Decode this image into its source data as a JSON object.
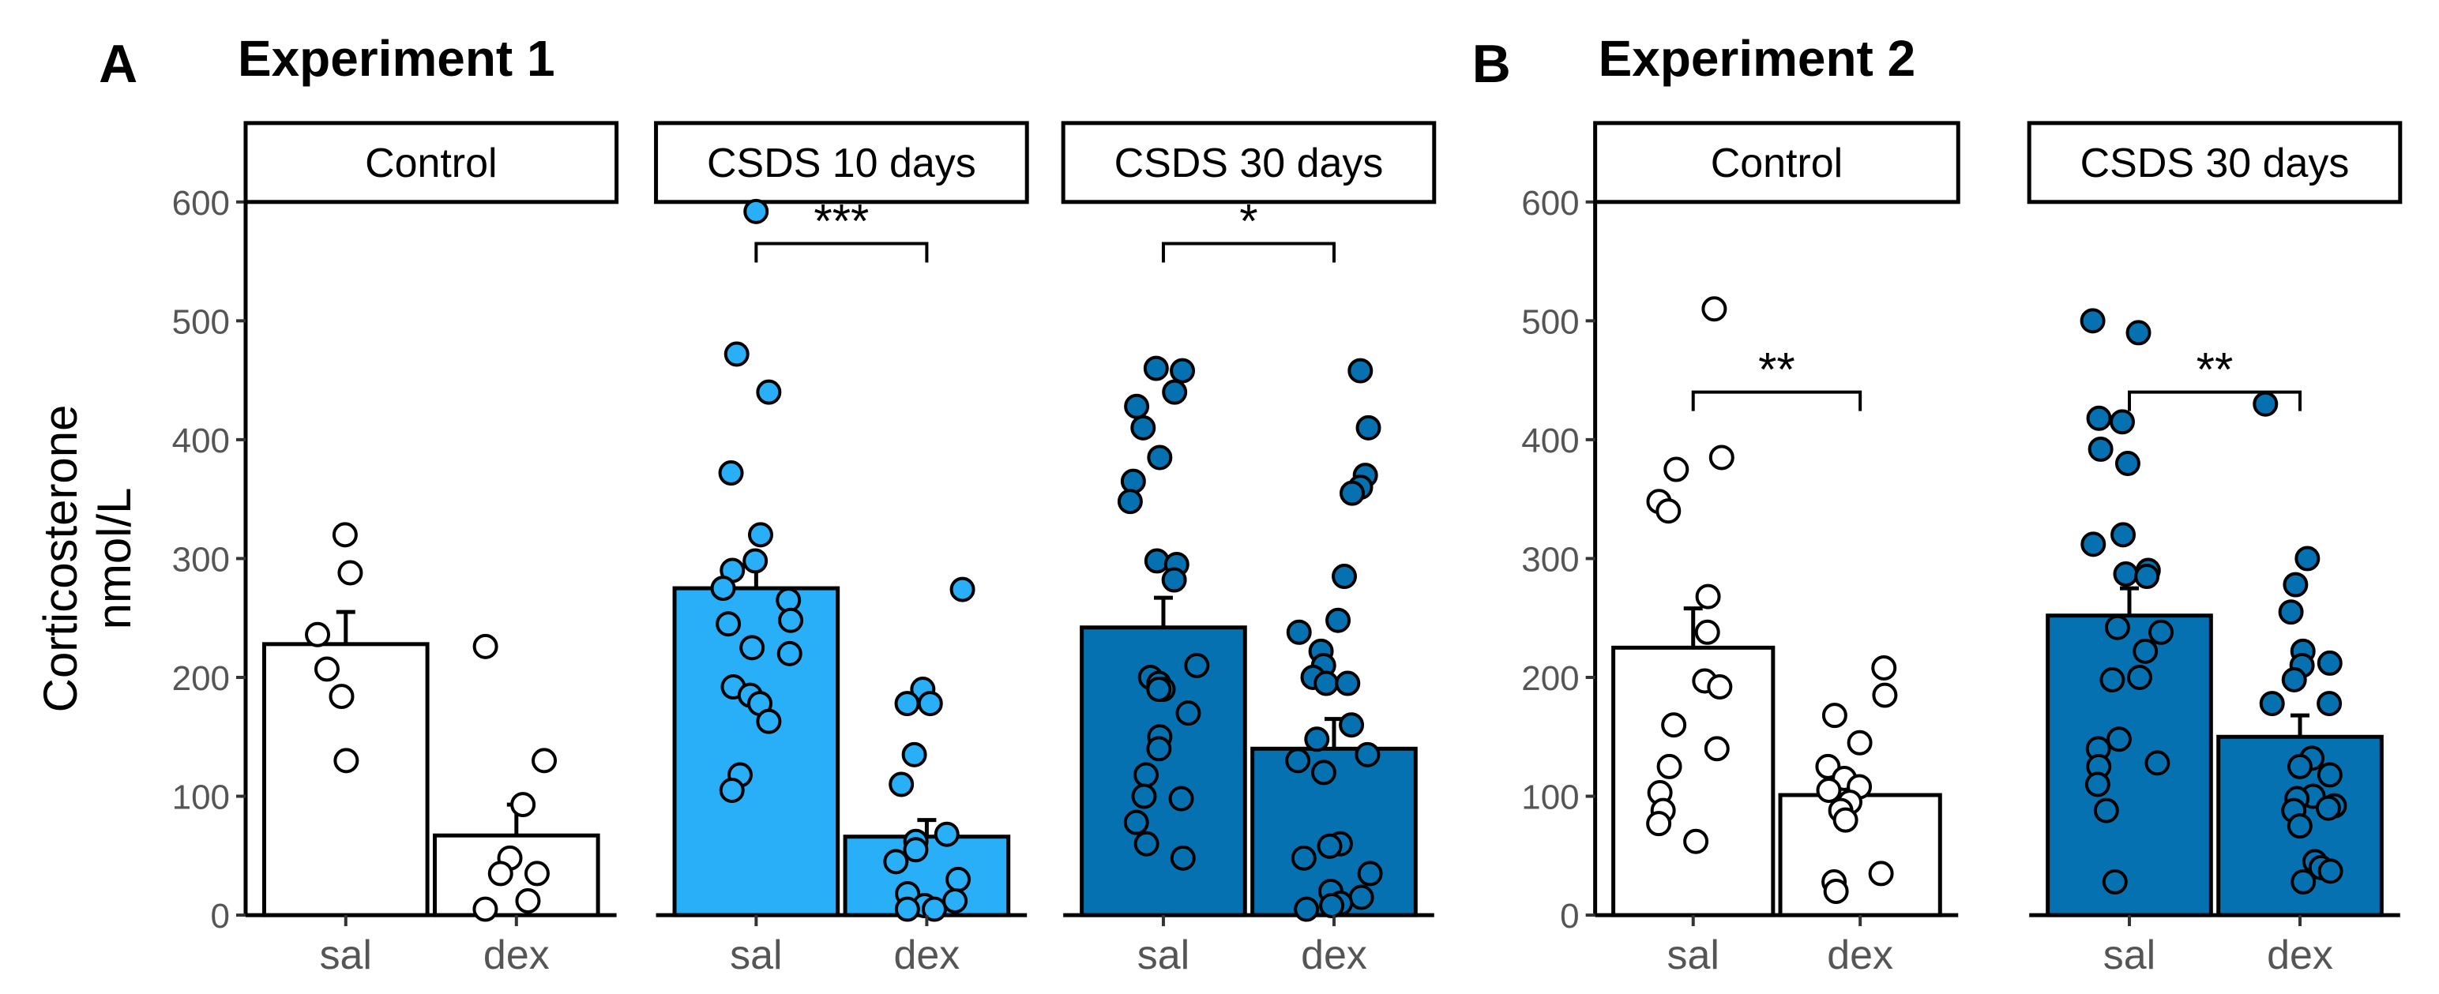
{
  "figure": {
    "ylabel_line1": "Corticosterone",
    "ylabel_line2": "nmol/L"
  },
  "chart_data": [
    {
      "type": "bar",
      "panel_letter": "A",
      "title": "Experiment 1",
      "ylim": [
        0,
        600
      ],
      "yticks": [
        0,
        100,
        200,
        300,
        400,
        500,
        600
      ],
      "grid": false,
      "categories": [
        "sal",
        "dex"
      ],
      "facets": [
        {
          "label": "Control",
          "color": "#ffffff",
          "bars": [
            {
              "category": "sal",
              "mean": 228,
              "se_upper": 255,
              "points": [
                320,
                288,
                236,
                207,
                184,
                130
              ]
            },
            {
              "category": "dex",
              "mean": 67,
              "se_upper": 93,
              "points": [
                226,
                130,
                93,
                48,
                35,
                35,
                12,
                5
              ]
            }
          ],
          "significance": null
        },
        {
          "label": "CSDS 10 days",
          "color": "#29aef8",
          "bars": [
            {
              "category": "sal",
              "mean": 275,
              "se_upper": 300,
              "points": [
                592,
                472,
                440,
                372,
                320,
                298,
                290,
                275,
                265,
                248,
                245,
                225,
                220,
                192,
                185,
                178,
                163,
                118,
                105
              ]
            },
            {
              "category": "dex",
              "mean": 66,
              "se_upper": 80,
              "points": [
                274,
                190,
                178,
                178,
                135,
                110,
                68,
                62,
                55,
                45,
                30,
                18,
                12,
                8,
                5,
                5
              ]
            }
          ],
          "significance": {
            "label": "***",
            "y": 565
          }
        },
        {
          "label": "CSDS 30 days",
          "color": "#0571b0",
          "bars": [
            {
              "category": "sal",
              "mean": 242,
              "se_upper": 267,
              "points": [
                460,
                458,
                440,
                428,
                410,
                385,
                365,
                348,
                298,
                295,
                282,
                210,
                200,
                195,
                190,
                190,
                170,
                150,
                140,
                118,
                100,
                98,
                78,
                60,
                48
              ]
            },
            {
              "category": "dex",
              "mean": 140,
              "se_upper": 165,
              "points": [
                458,
                410,
                370,
                360,
                355,
                285,
                248,
                238,
                222,
                210,
                200,
                195,
                195,
                160,
                148,
                135,
                130,
                120,
                60,
                58,
                48,
                35,
                20,
                15,
                10,
                8,
                5
              ]
            }
          ],
          "significance": {
            "label": "*",
            "y": 565
          }
        }
      ]
    },
    {
      "type": "bar",
      "panel_letter": "B",
      "title": "Experiment 2",
      "ylim": [
        0,
        600
      ],
      "yticks": [
        0,
        100,
        200,
        300,
        400,
        500,
        600
      ],
      "grid": false,
      "categories": [
        "sal",
        "dex"
      ],
      "facets": [
        {
          "label": "Control",
          "color": "#ffffff",
          "bars": [
            {
              "category": "sal",
              "mean": 225,
              "se_upper": 258,
              "points": [
                510,
                385,
                375,
                348,
                340,
                268,
                238,
                197,
                192,
                160,
                140,
                125,
                103,
                88,
                77,
                62
              ]
            },
            {
              "category": "dex",
              "mean": 101,
              "se_upper": 112,
              "points": [
                208,
                185,
                168,
                145,
                125,
                115,
                108,
                105,
                95,
                88,
                80,
                35,
                28,
                20
              ]
            }
          ],
          "significance": {
            "label": "**",
            "y": 440
          }
        },
        {
          "label": "CSDS 30 days",
          "color": "#0571b0",
          "bars": [
            {
              "category": "sal",
              "mean": 252,
              "se_upper": 275,
              "points": [
                500,
                490,
                418,
                415,
                392,
                380,
                320,
                312,
                290,
                287,
                285,
                242,
                238,
                222,
                200,
                198,
                148,
                140,
                128,
                125,
                110,
                88,
                28
              ]
            },
            {
              "category": "dex",
              "mean": 150,
              "se_upper": 168,
              "points": [
                430,
                300,
                278,
                255,
                222,
                212,
                210,
                198,
                178,
                178,
                132,
                125,
                118,
                100,
                98,
                92,
                90,
                88,
                75,
                45,
                40,
                37,
                28
              ]
            }
          ],
          "significance": {
            "label": "**",
            "y": 440
          }
        }
      ]
    }
  ]
}
